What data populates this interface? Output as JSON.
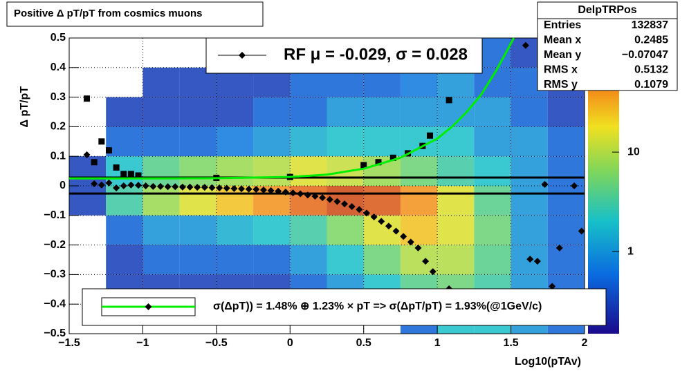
{
  "chart_data": {
    "type": "scatter",
    "title": "Positive Δ pT/pT from cosmics muons",
    "x_label": "Log10(pTAv)",
    "y_label": "Δ pT/pT",
    "xlim": [
      -1.5,
      2
    ],
    "ylim": [
      -0.5,
      0.5
    ],
    "xticks": [
      {
        "value": -1.5,
        "label": "−1.5"
      },
      {
        "value": -1,
        "label": "−1"
      },
      {
        "value": -0.5,
        "label": "−0.5"
      },
      0,
      0.5,
      1,
      1.5,
      2
    ],
    "yticks": [
      {
        "value": -0.5,
        "label": "−0.5"
      },
      {
        "value": -0.4,
        "label": "−0.4"
      },
      {
        "value": -0.3,
        "label": "−0.3"
      },
      {
        "value": -0.2,
        "label": "−0.2"
      },
      {
        "value": -0.1,
        "label": "−0.1"
      },
      0,
      0.1,
      0.2,
      0.3,
      0.4,
      0.5
    ],
    "grid": true,
    "heatmap": {
      "xbins": [
        -1.5,
        -1.25,
        -1,
        -0.75,
        -0.5,
        -0.25,
        0,
        0.25,
        0.5,
        0.75,
        1,
        1.25,
        1.5,
        1.75,
        2
      ],
      "ybins": [
        -0.5,
        -0.4,
        -0.3,
        -0.2,
        -0.1,
        0,
        0.1,
        0.2,
        0.3,
        0.4,
        0.5
      ],
      "z": [
        [
          0,
          0,
          0,
          0,
          0,
          0,
          0,
          0,
          0,
          0.5,
          2,
          2,
          1,
          0.5
        ],
        [
          0,
          0.3,
          0.3,
          0.3,
          0.3,
          0.3,
          0.5,
          1,
          2,
          4,
          5,
          3,
          1,
          0.5
        ],
        [
          0,
          0.3,
          0.5,
          0.5,
          0.5,
          0.5,
          1,
          2,
          5,
          10,
          10,
          4,
          1,
          0.5
        ],
        [
          0,
          0.5,
          1,
          1,
          1.5,
          2,
          3,
          6,
          15,
          25,
          15,
          5,
          1,
          0.5
        ],
        [
          0.3,
          3,
          8,
          15,
          25,
          40,
          60,
          80,
          70,
          40,
          15,
          4,
          1,
          0.5
        ],
        [
          0.3,
          2,
          4,
          6,
          8,
          10,
          15,
          12,
          8,
          5,
          3,
          2,
          1,
          0.5
        ],
        [
          0,
          0.5,
          0.5,
          0.5,
          0.7,
          1,
          1.5,
          2,
          2,
          2,
          2,
          1,
          1,
          0.5
        ],
        [
          0,
          0.3,
          0.3,
          0.3,
          0.3,
          0.5,
          0.5,
          1,
          1,
          1,
          1,
          1,
          0.5,
          0.3
        ],
        [
          0,
          0,
          0.3,
          0.3,
          0.3,
          0.3,
          0.5,
          0.5,
          0.5,
          0.7,
          1,
          0.5,
          0.5,
          0.3
        ],
        [
          0,
          0,
          0,
          0,
          0,
          0.3,
          0.3,
          0.3,
          0.3,
          0.3,
          0.5,
          0.5,
          0.3,
          0.3
        ]
      ],
      "zlim": [
        0.15,
        140
      ],
      "zticks": [
        1,
        10
      ],
      "zlog": true
    },
    "reference_lines": [
      0.028,
      -0.026
    ],
    "series": [
      {
        "name": "RF μ = -0.029, σ =   0.028",
        "style": "diamond",
        "color": "#000000",
        "x": [
          -1.38,
          -1.33,
          -1.28,
          -1.23,
          -1.18,
          -1.13,
          -1.08,
          -1.03,
          -0.98,
          -0.93,
          -0.88,
          -0.83,
          -0.78,
          -0.73,
          -0.68,
          -0.63,
          -0.58,
          -0.53,
          -0.48,
          -0.43,
          -0.38,
          -0.33,
          -0.28,
          -0.23,
          -0.18,
          -0.13,
          -0.08,
          -0.03,
          0.02,
          0.07,
          0.12,
          0.17,
          0.22,
          0.27,
          0.32,
          0.37,
          0.42,
          0.47,
          0.52,
          0.57,
          0.62,
          0.67,
          0.72,
          0.77,
          0.82,
          0.87,
          0.92,
          0.97,
          1.08,
          1.6,
          1.63,
          1.68,
          1.73,
          1.78,
          1.83,
          1.93,
          1.98
        ],
        "values": [
          0.105,
          0.007,
          0.003,
          0.01,
          -0.007,
          0.0,
          0.003,
          0.002,
          0.0,
          -0.002,
          -0.002,
          -0.003,
          -0.003,
          -0.004,
          -0.004,
          -0.005,
          -0.005,
          -0.006,
          -0.007,
          -0.008,
          -0.009,
          -0.01,
          -0.011,
          -0.012,
          -0.014,
          -0.016,
          -0.018,
          -0.021,
          -0.024,
          -0.027,
          -0.031,
          -0.035,
          -0.04,
          -0.046,
          -0.053,
          -0.061,
          -0.07,
          -0.08,
          -0.092,
          -0.105,
          -0.12,
          -0.136,
          -0.153,
          -0.171,
          -0.19,
          -0.21,
          -0.255,
          -0.29,
          -0.348,
          0.475,
          -0.248,
          -0.255,
          0.005,
          -0.34,
          -0.21,
          0.0,
          -0.153
        ]
      },
      {
        "style": "square",
        "color": "#000000",
        "x": [
          -1.38,
          -1.33,
          -1.28,
          -1.23,
          -1.18,
          -1.13,
          -1.08,
          -1.03,
          -0.5,
          0.0,
          0.5,
          0.6,
          0.7,
          0.8,
          0.9,
          0.95,
          1.08
        ],
        "values": [
          0.295,
          0.08,
          0.15,
          0.12,
          0.062,
          0.04,
          0.04,
          0.035,
          0.027,
          0.03,
          0.07,
          0.08,
          0.095,
          0.11,
          0.135,
          0.17,
          0.29
        ]
      },
      {
        "name": "σ(ΔpT)) =  1.48% ⊕  1.23% × pT => σ(ΔpT/pT) =  1.93%(@1GeV/c)",
        "style": "line",
        "color": "#00ee00",
        "x": [
          -1.5,
          -1,
          -0.5,
          0,
          0.25,
          0.5,
          0.75,
          1.0,
          1.1,
          1.2,
          1.3,
          1.4,
          1.52
        ],
        "values": [
          0.025,
          0.025,
          0.026,
          0.03,
          0.038,
          0.058,
          0.095,
          0.16,
          0.2,
          0.25,
          0.31,
          0.39,
          0.5
        ]
      }
    ],
    "stats": {
      "title": "DelpTRPos",
      "rows": [
        [
          "Entries",
          "132837"
        ],
        [
          "Mean x",
          "0.2485"
        ],
        [
          "Mean y",
          "−0.07047"
        ],
        [
          "RMS x",
          "0.5132"
        ],
        [
          "RMS y",
          "0.1079"
        ]
      ]
    }
  }
}
